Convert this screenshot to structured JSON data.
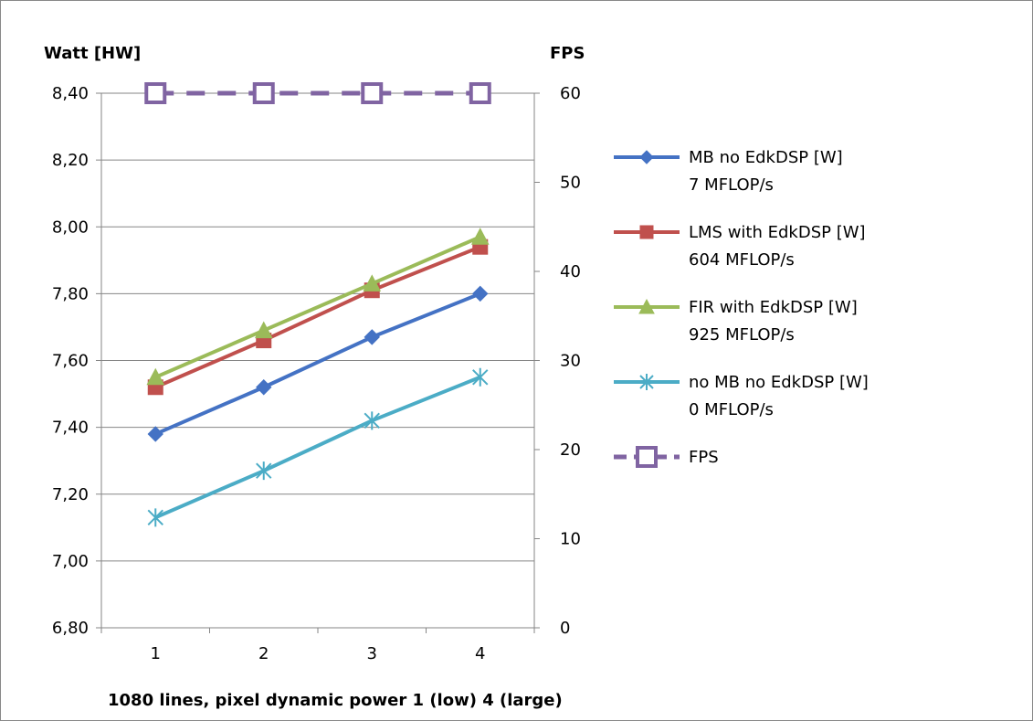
{
  "chart_data": {
    "type": "line",
    "x": [
      "1",
      "2",
      "3",
      "4"
    ],
    "xlabel": "1080 lines, pixel dynamic power 1 (low) 4 (large)",
    "ylabel_left": "Watt [HW]",
    "ylabel_right": "FPS",
    "ylim_left": [
      6.8,
      8.4
    ],
    "yticks_left": [
      "6,80",
      "7,00",
      "7,20",
      "7,40",
      "7,60",
      "7,80",
      "8,00",
      "8,20",
      "8,40"
    ],
    "ylim_right": [
      0,
      60
    ],
    "yticks_right": [
      "0",
      "10",
      "20",
      "30",
      "40",
      "50",
      "60"
    ],
    "grid": "horizontal",
    "legend_position": "right",
    "series": [
      {
        "name": "MB no EdkDSP [W]",
        "sublabel": "7 MFLOP/s",
        "axis": "left",
        "color": "#4472c4",
        "marker": "diamond",
        "values": [
          7.38,
          7.52,
          7.67,
          7.8
        ]
      },
      {
        "name": "LMS with EdkDSP [W]",
        "sublabel": "604 MFLOP/s",
        "axis": "left",
        "color": "#c0504d",
        "marker": "square",
        "values": [
          7.52,
          7.66,
          7.81,
          7.94
        ]
      },
      {
        "name": "FIR with EdkDSP [W]",
        "sublabel": "925 MFLOP/s",
        "axis": "left",
        "color": "#9bbb59",
        "marker": "triangle",
        "values": [
          7.55,
          7.69,
          7.83,
          7.97
        ]
      },
      {
        "name": "no MB no EdkDSP [W]",
        "sublabel": "0 MFLOP/s",
        "axis": "left",
        "color": "#4bacc6",
        "marker": "star",
        "values": [
          7.13,
          7.27,
          7.42,
          7.55
        ]
      },
      {
        "name": "FPS",
        "sublabel": "",
        "axis": "right",
        "color": "#8064a2",
        "marker": "hollow-square",
        "dashed": true,
        "values": [
          60,
          60,
          60,
          60
        ]
      }
    ]
  }
}
